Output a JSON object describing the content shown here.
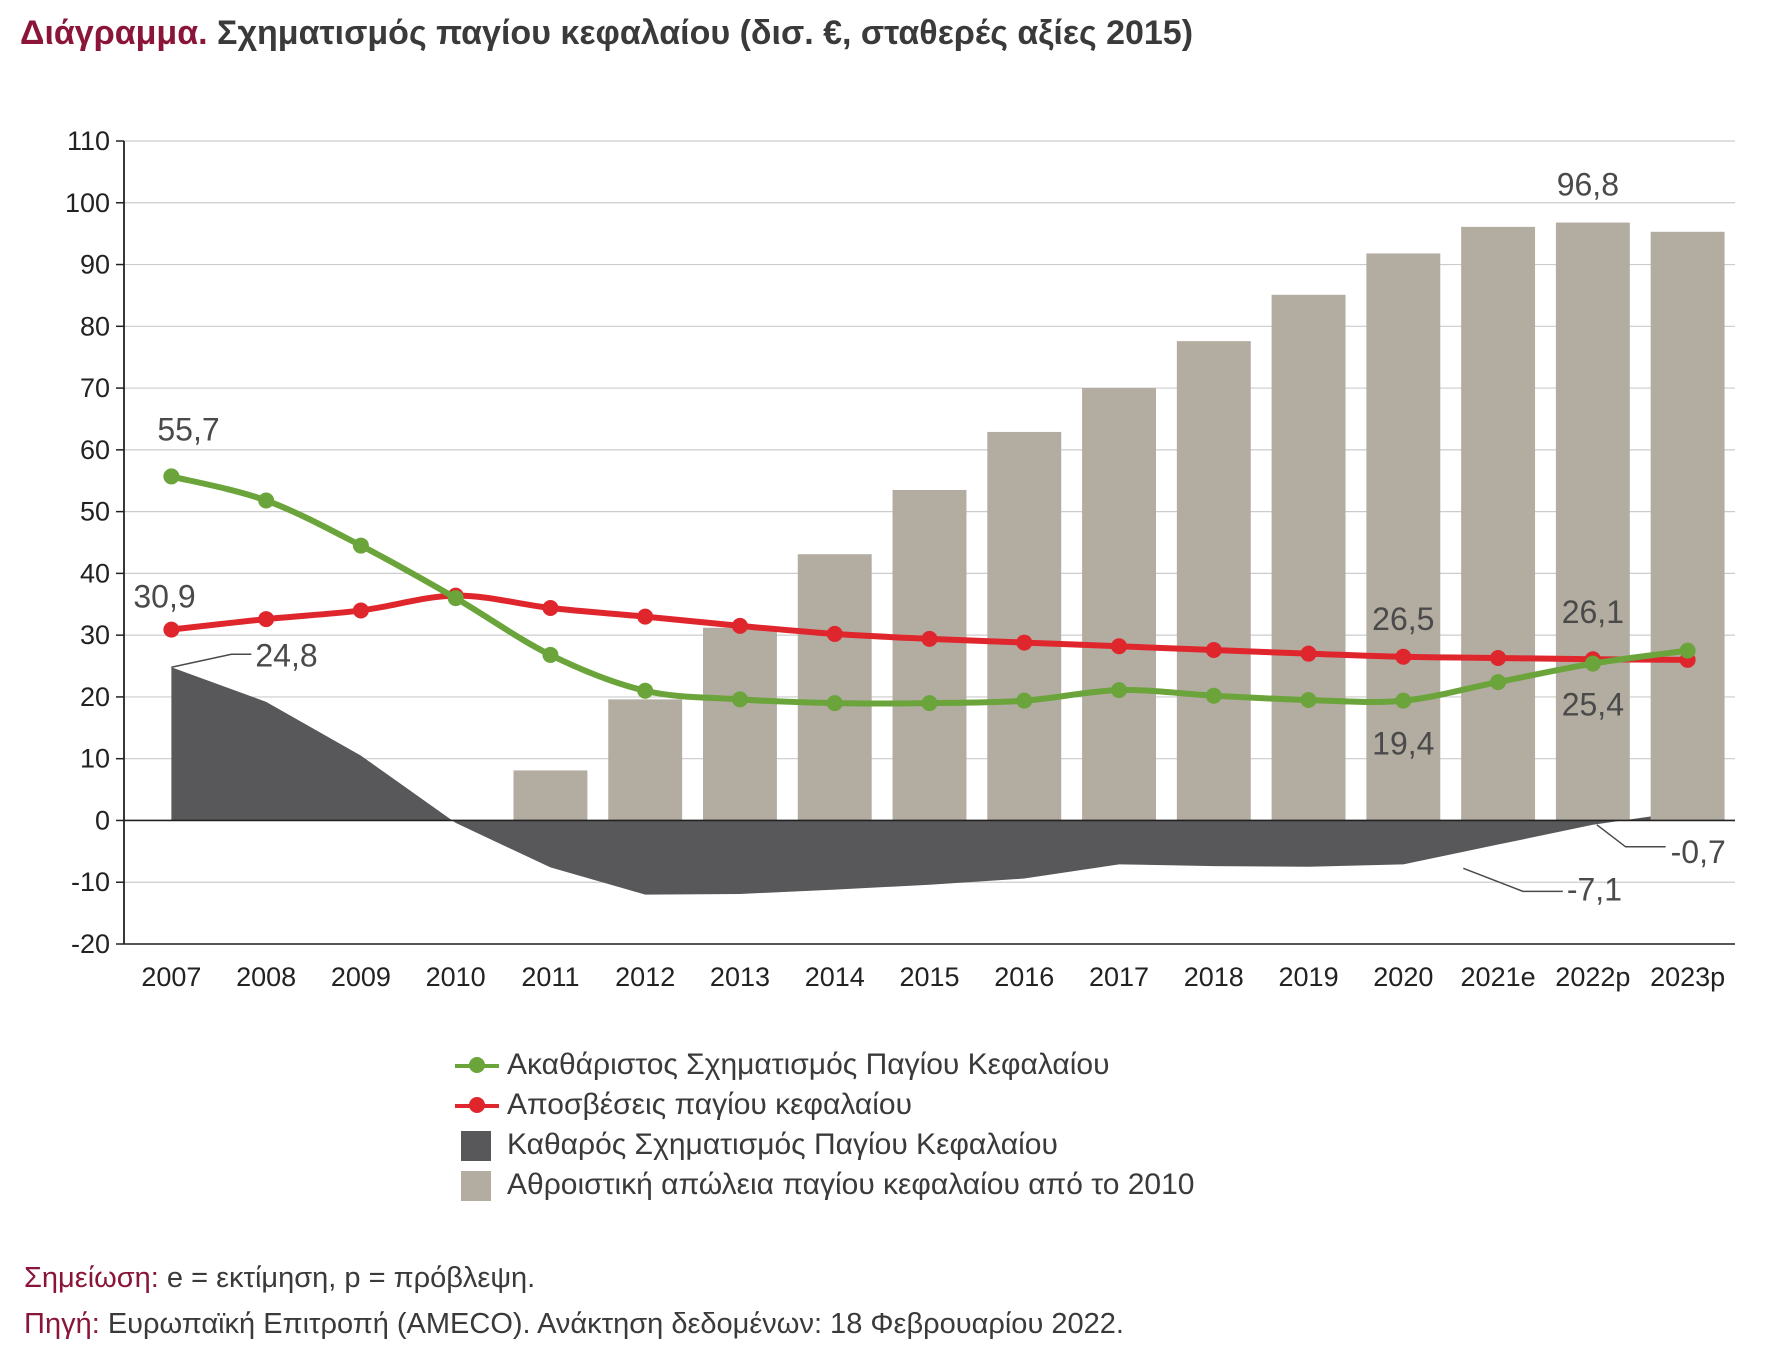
{
  "header": {
    "title_lead": "Διάγραμμα.",
    "title_rest": "Σχηματισμός παγίου κεφαλαίου (δισ. €, σταθερές αξίες 2015)"
  },
  "colors": {
    "gross": "#6aa43a",
    "depreciation": "#e0262d",
    "net": "#58585a",
    "cumulative": "#b3aca1",
    "axis": "#222222",
    "grid": "#cccccc",
    "accent": "#8a1538"
  },
  "chart_data": {
    "type": "bar",
    "categories": [
      "2007",
      "2008",
      "2009",
      "2010",
      "2011",
      "2012",
      "2013",
      "2014",
      "2015",
      "2016",
      "2017",
      "2018",
      "2019",
      "2020",
      "2021e",
      "2022p",
      "2023p"
    ],
    "ylim": [
      -20,
      110
    ],
    "yticks": [
      110,
      100,
      90,
      80,
      70,
      60,
      50,
      40,
      30,
      20,
      10,
      0,
      -10,
      -20
    ],
    "grid": true,
    "legend_position": "bottom",
    "series": [
      {
        "name": "Ακαθάριστος Σχηματισμός Παγίου Κεφαλαίου",
        "kind": "line",
        "values": [
          55.7,
          51.8,
          44.5,
          36.0,
          26.8,
          21.0,
          19.6,
          19.0,
          19.0,
          19.4,
          21.1,
          20.2,
          19.5,
          19.4,
          22.4,
          25.4,
          27.5
        ]
      },
      {
        "name": "Αποσβέσεις παγίου κεφαλαίου",
        "kind": "line",
        "values": [
          30.9,
          32.6,
          34.0,
          36.4,
          34.4,
          33.0,
          31.5,
          30.2,
          29.4,
          28.8,
          28.2,
          27.6,
          27.0,
          26.5,
          26.3,
          26.1,
          26.0
        ]
      },
      {
        "name": "Καθαρός Σχηματισμός Παγίου Κεφαλαίου",
        "kind": "area",
        "values": [
          24.8,
          19.2,
          10.5,
          -0.4,
          -7.6,
          -12.0,
          -11.9,
          -11.2,
          -10.4,
          -9.4,
          -7.1,
          -7.4,
          -7.5,
          -7.1,
          -3.9,
          -0.7,
          1.5
        ]
      },
      {
        "name": "Αθροιστική απώλεια παγίου κεφαλαίου από το 2010",
        "kind": "bar",
        "values": [
          null,
          null,
          null,
          null,
          8.1,
          19.6,
          31.2,
          43.1,
          53.5,
          62.9,
          70.0,
          77.6,
          85.1,
          91.8,
          96.1,
          96.8,
          95.3
        ]
      }
    ],
    "annotations": [
      "55,7",
      "30,9",
      "24,8",
      "26,5",
      "19,4",
      "26,1",
      "25,4",
      "96,8",
      "-0,7",
      "-7,1"
    ]
  },
  "notes": {
    "note_key": "Σημείωση:",
    "note_text": " e = εκτίμηση, p = πρόβλεψη.",
    "source_key": "Πηγή:",
    "source_text": " Ευρωπαϊκή Επιτροπή (AMECO). Ανάκτηση δεδομένων: 18 Φεβρουαρίου 2022."
  }
}
